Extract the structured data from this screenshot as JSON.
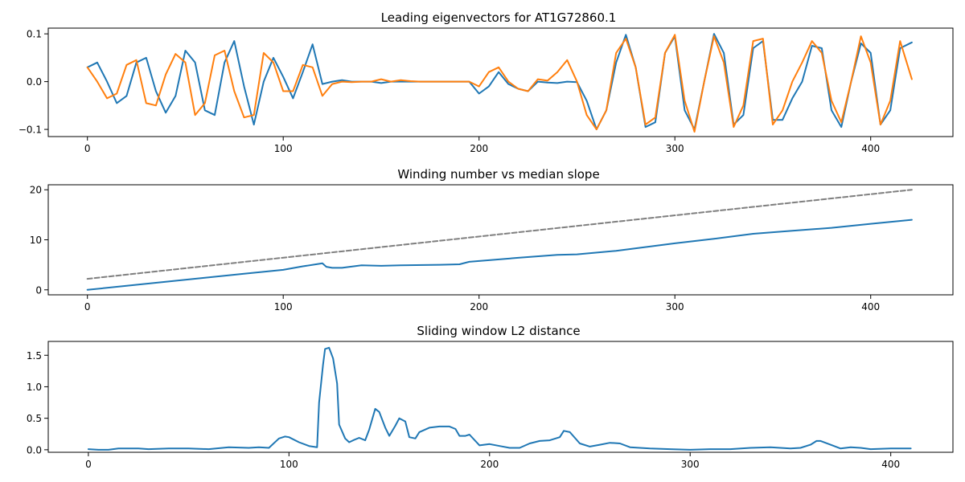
{
  "chart_data": [
    {
      "type": "line",
      "title": "Leading eigenvectors for AT1G72860.1",
      "xlabel": "",
      "ylabel": "",
      "xlim": [
        -20,
        442
      ],
      "ylim": [
        -0.115,
        0.112
      ],
      "xticks": [
        0,
        100,
        200,
        300,
        400
      ],
      "yticks": [
        -0.1,
        0.0,
        0.1
      ],
      "ytick_labels": [
        "−0.1",
        "0.0",
        "0.1"
      ],
      "series": [
        {
          "color": "#1f77b4",
          "x": [
            0,
            5,
            10,
            15,
            20,
            25,
            30,
            35,
            40,
            45,
            50,
            55,
            60,
            65,
            70,
            75,
            80,
            85,
            90,
            95,
            100,
            105,
            110,
            115,
            120,
            125,
            130,
            135,
            140,
            145,
            150,
            155,
            160,
            165,
            170,
            175,
            180,
            185,
            190,
            195,
            200,
            205,
            210,
            215,
            220,
            225,
            230,
            235,
            240,
            245,
            250,
            255,
            260,
            265,
            270,
            275,
            280,
            285,
            290,
            295,
            300,
            305,
            310,
            315,
            320,
            325,
            330,
            335,
            340,
            345,
            350,
            355,
            360,
            365,
            370,
            375,
            380,
            385,
            390,
            395,
            400,
            405,
            410,
            415,
            421
          ],
          "y": [
            0.03,
            0.04,
            0.0,
            -0.045,
            -0.03,
            0.04,
            0.05,
            -0.02,
            -0.065,
            -0.03,
            0.065,
            0.04,
            -0.06,
            -0.07,
            0.04,
            0.085,
            -0.01,
            -0.09,
            0.0,
            0.05,
            0.01,
            -0.035,
            0.02,
            0.078,
            -0.005,
            0.0,
            0.003,
            0.0,
            0.0,
            0.0,
            -0.003,
            0.0,
            0.0,
            0.0,
            0.0,
            0.0,
            0.0,
            0.0,
            0.0,
            0.0,
            -0.025,
            -0.01,
            0.02,
            -0.005,
            -0.015,
            -0.02,
            0.0,
            -0.002,
            -0.003,
            0.0,
            -0.001,
            -0.04,
            -0.1,
            -0.06,
            0.04,
            0.098,
            0.03,
            -0.095,
            -0.085,
            0.06,
            0.095,
            -0.06,
            -0.1,
            0.0,
            0.1,
            0.06,
            -0.09,
            -0.07,
            0.07,
            0.085,
            -0.08,
            -0.08,
            -0.035,
            0.0,
            0.075,
            0.07,
            -0.06,
            -0.095,
            0.0,
            0.08,
            0.06,
            -0.09,
            -0.06,
            0.07,
            0.082
          ]
        },
        {
          "color": "#ff7f0e",
          "x": [
            0,
            5,
            10,
            15,
            20,
            25,
            30,
            35,
            40,
            45,
            50,
            55,
            60,
            65,
            70,
            75,
            80,
            85,
            90,
            95,
            100,
            105,
            110,
            115,
            120,
            125,
            130,
            135,
            140,
            145,
            150,
            155,
            160,
            165,
            170,
            175,
            180,
            185,
            190,
            195,
            200,
            205,
            210,
            215,
            220,
            225,
            230,
            235,
            240,
            245,
            250,
            255,
            260,
            265,
            270,
            275,
            280,
            285,
            290,
            295,
            300,
            305,
            310,
            315,
            320,
            325,
            330,
            335,
            340,
            345,
            350,
            355,
            360,
            365,
            370,
            375,
            380,
            385,
            390,
            395,
            400,
            405,
            410,
            415,
            421
          ],
          "y": [
            0.03,
            0.0,
            -0.035,
            -0.025,
            0.035,
            0.045,
            -0.045,
            -0.05,
            0.015,
            0.058,
            0.04,
            -0.07,
            -0.045,
            0.055,
            0.065,
            -0.02,
            -0.075,
            -0.07,
            0.06,
            0.04,
            -0.02,
            -0.02,
            0.035,
            0.03,
            -0.03,
            -0.005,
            0.0,
            -0.001,
            0.0,
            0.0,
            0.005,
            0.0,
            0.003,
            0.001,
            0.0,
            0.0,
            0.0,
            0.0,
            0.0,
            0.0,
            -0.01,
            0.02,
            0.03,
            0.0,
            -0.015,
            -0.02,
            0.005,
            0.002,
            0.02,
            0.045,
            0.0,
            -0.07,
            -0.1,
            -0.06,
            0.06,
            0.09,
            0.03,
            -0.09,
            -0.075,
            0.06,
            0.098,
            -0.04,
            -0.105,
            0.0,
            0.095,
            0.04,
            -0.095,
            -0.05,
            0.085,
            0.09,
            -0.09,
            -0.06,
            0.0,
            0.04,
            0.085,
            0.06,
            -0.04,
            -0.085,
            0.0,
            0.095,
            0.04,
            -0.09,
            -0.04,
            0.085,
            0.005
          ]
        }
      ]
    },
    {
      "type": "line",
      "title": "Winding number vs median slope",
      "xlabel": "",
      "ylabel": "",
      "xlim": [
        -20,
        442
      ],
      "ylim": [
        -1.0,
        21.0
      ],
      "xticks": [
        0,
        100,
        200,
        300,
        400
      ],
      "yticks": [
        0,
        10,
        20
      ],
      "series": [
        {
          "color": "#1f77b4",
          "style": "solid",
          "x": [
            0,
            20,
            40,
            60,
            80,
            100,
            110,
            120,
            122,
            125,
            130,
            140,
            150,
            160,
            180,
            190,
            195,
            220,
            240,
            250,
            270,
            300,
            320,
            340,
            360,
            380,
            400,
            421
          ],
          "y": [
            0.0,
            0.8,
            1.6,
            2.4,
            3.2,
            4.0,
            4.7,
            5.3,
            4.6,
            4.4,
            4.4,
            4.9,
            4.8,
            4.9,
            5.0,
            5.1,
            5.6,
            6.4,
            7.0,
            7.1,
            7.8,
            9.3,
            10.2,
            11.2,
            11.8,
            12.4,
            13.2,
            14.0
          ]
        },
        {
          "color": "#7f7f7f",
          "style": "dashed",
          "x": [
            0,
            421
          ],
          "y": [
            2.2,
            20.0
          ]
        }
      ]
    },
    {
      "type": "line",
      "title": "Sliding window L2 distance",
      "xlabel": "",
      "ylabel": "",
      "xlim": [
        -20,
        431
      ],
      "ylim": [
        -0.04,
        1.72
      ],
      "xticks": [
        0,
        100,
        200,
        300,
        400
      ],
      "yticks": [
        0.0,
        0.5,
        1.0,
        1.5
      ],
      "ytick_labels": [
        "0.0",
        "0.5",
        "1.0",
        "1.5"
      ],
      "series": [
        {
          "color": "#1f77b4",
          "x": [
            0,
            5,
            10,
            15,
            20,
            25,
            30,
            40,
            50,
            60,
            70,
            80,
            85,
            90,
            95,
            98,
            100,
            105,
            110,
            114,
            115,
            117,
            118,
            120,
            122,
            124,
            125,
            128,
            130,
            132,
            135,
            138,
            140,
            143,
            145,
            148,
            150,
            153,
            155,
            158,
            160,
            163,
            165,
            170,
            175,
            180,
            183,
            185,
            188,
            190,
            195,
            200,
            205,
            210,
            215,
            220,
            225,
            230,
            235,
            237,
            240,
            245,
            250,
            255,
            260,
            265,
            270,
            280,
            290,
            300,
            310,
            320,
            330,
            340,
            350,
            355,
            360,
            363,
            365,
            370,
            375,
            380,
            385,
            390,
            400,
            410
          ],
          "y": [
            0.01,
            0.0,
            0.0,
            0.02,
            0.02,
            0.02,
            0.01,
            0.02,
            0.02,
            0.01,
            0.04,
            0.03,
            0.04,
            0.03,
            0.18,
            0.21,
            0.2,
            0.12,
            0.06,
            0.04,
            0.75,
            1.35,
            1.6,
            1.62,
            1.45,
            1.05,
            0.4,
            0.18,
            0.12,
            0.15,
            0.19,
            0.15,
            0.32,
            0.65,
            0.6,
            0.35,
            0.22,
            0.38,
            0.5,
            0.45,
            0.2,
            0.18,
            0.28,
            0.35,
            0.37,
            0.37,
            0.33,
            0.22,
            0.22,
            0.24,
            0.07,
            0.09,
            0.06,
            0.03,
            0.03,
            0.1,
            0.14,
            0.15,
            0.2,
            0.3,
            0.28,
            0.1,
            0.05,
            0.08,
            0.11,
            0.1,
            0.04,
            0.02,
            0.01,
            0.0,
            0.01,
            0.01,
            0.03,
            0.04,
            0.02,
            0.03,
            0.08,
            0.14,
            0.14,
            0.08,
            0.02,
            0.04,
            0.03,
            0.01,
            0.02,
            0.02
          ]
        }
      ]
    }
  ]
}
